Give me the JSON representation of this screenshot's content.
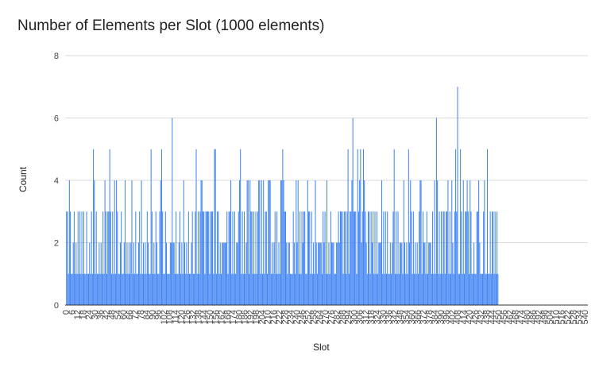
{
  "chart_data": {
    "type": "bar",
    "title": "Number of Elements per Slot (1000 elements)",
    "xlabel": "Slot",
    "ylabel": "Count",
    "ylim": [
      0,
      8
    ],
    "y_ticks": [
      0,
      2,
      4,
      6,
      8
    ],
    "x_range": [
      0,
      544
    ],
    "x_ticks": [
      0,
      6,
      12,
      18,
      24,
      30,
      36,
      42,
      48,
      54,
      60,
      66,
      72,
      78,
      84,
      90,
      96,
      102,
      108,
      114,
      120,
      126,
      132,
      138,
      144,
      150,
      156,
      162,
      168,
      174,
      180,
      186,
      192,
      198,
      204,
      210,
      216,
      222,
      228,
      234,
      240,
      246,
      252,
      258,
      264,
      270,
      276,
      282,
      288,
      294,
      300,
      306,
      312,
      318,
      324,
      330,
      336,
      342,
      348,
      354,
      360,
      366,
      372,
      378,
      384,
      390,
      396,
      402,
      408,
      414,
      420,
      426,
      432,
      438,
      444,
      450,
      456,
      462,
      468,
      474,
      480,
      486,
      492,
      498,
      504,
      510,
      516,
      522,
      528,
      534,
      540
    ],
    "bar_color": "#4285f4",
    "grid": true,
    "legend": "none",
    "values": [
      0,
      3,
      3,
      1,
      4,
      3,
      1,
      1,
      2,
      3,
      1,
      2,
      1,
      3,
      1,
      3,
      1,
      3,
      1,
      3,
      1,
      1,
      3,
      1,
      1,
      2,
      1,
      3,
      1,
      5,
      4,
      1,
      3,
      1,
      1,
      2,
      1,
      2,
      1,
      3,
      1,
      4,
      3,
      1,
      3,
      3,
      5,
      3,
      1,
      3,
      1,
      4,
      1,
      4,
      3,
      1,
      1,
      2,
      3,
      1,
      1,
      2,
      4,
      1,
      2,
      1,
      2,
      1,
      2,
      4,
      1,
      2,
      1,
      3,
      1,
      1,
      2,
      3,
      1,
      4,
      1,
      2,
      1,
      2,
      1,
      3,
      2,
      1,
      1,
      5,
      3,
      1,
      2,
      1,
      3,
      2,
      1,
      1,
      3,
      4,
      5,
      3,
      1,
      1,
      3,
      2,
      1,
      1,
      1,
      2,
      2,
      6,
      2,
      2,
      1,
      3,
      1,
      1,
      2,
      3,
      1,
      2,
      1,
      4,
      2,
      1,
      2,
      1,
      3,
      1,
      1,
      2,
      3,
      1,
      1,
      3,
      5,
      1,
      3,
      1,
      3,
      4,
      4,
      3,
      3,
      1,
      3,
      3,
      3,
      3,
      1,
      3,
      3,
      3,
      1,
      5,
      5,
      1,
      3,
      3,
      1,
      2,
      1,
      2,
      2,
      2,
      2,
      2,
      3,
      1,
      3,
      3,
      4,
      1,
      3,
      1,
      3,
      1,
      2,
      2,
      3,
      4,
      5,
      1,
      3,
      1,
      3,
      1,
      2,
      4,
      4,
      1,
      4,
      3,
      3,
      1,
      3,
      1,
      3,
      1,
      3,
      4,
      4,
      1,
      4,
      1,
      4,
      1,
      3,
      3,
      1,
      4,
      4,
      4,
      1,
      2,
      1,
      2,
      3,
      1,
      3,
      1,
      2,
      1,
      4,
      4,
      5,
      4,
      3,
      3,
      2,
      1,
      2,
      2,
      1,
      1,
      1,
      3,
      2,
      1,
      4,
      2,
      4,
      1,
      3,
      1,
      3,
      2,
      3,
      3,
      1,
      1,
      4,
      3,
      3,
      1,
      3,
      1,
      2,
      1,
      4,
      2,
      1,
      2,
      2,
      2,
      2,
      1,
      3,
      2,
      3,
      1,
      4,
      1,
      2,
      1,
      3,
      2,
      2,
      2,
      1,
      1,
      2,
      2,
      3,
      2,
      3,
      3,
      3,
      1,
      3,
      3,
      1,
      3,
      5,
      1,
      3,
      3,
      4,
      6,
      3,
      3,
      3,
      1,
      5,
      3,
      4,
      5,
      2,
      3,
      5,
      4,
      3,
      2,
      1,
      3,
      3,
      1,
      3,
      2,
      3,
      1,
      3,
      1,
      3,
      1,
      2,
      2,
      2,
      4,
      1,
      3,
      1,
      3,
      1,
      3,
      1,
      1,
      2,
      1,
      2,
      3,
      5,
      1,
      3,
      1,
      3,
      1,
      2,
      2,
      2,
      1,
      4,
      2,
      1,
      2,
      1,
      5,
      2,
      4,
      3,
      1,
      3,
      1,
      2,
      1,
      2,
      1,
      3,
      4,
      4,
      1,
      3,
      2,
      2,
      1,
      3,
      1,
      2,
      2,
      2,
      1,
      3,
      1,
      4,
      1,
      6,
      4,
      1,
      3,
      1,
      3,
      1,
      3,
      3,
      1,
      3,
      3,
      4,
      1,
      3,
      1,
      4,
      2,
      1,
      3,
      5,
      3,
      7,
      1,
      1,
      5,
      3,
      1,
      4,
      1,
      3,
      3,
      4,
      3,
      1,
      4,
      3,
      1,
      1,
      2,
      1,
      1,
      3,
      3,
      4,
      2,
      1,
      1,
      1,
      3,
      4,
      1,
      1,
      5,
      1,
      1,
      3,
      1,
      3,
      3,
      1,
      3,
      1,
      3,
      1,
      0,
      0,
      0,
      0,
      0,
      0,
      0,
      0,
      0,
      0,
      0,
      0,
      0,
      0,
      0,
      0,
      0,
      0,
      0,
      0,
      0,
      0,
      0,
      0,
      0,
      0,
      0,
      0,
      0,
      0,
      0,
      0,
      0
    ]
  }
}
